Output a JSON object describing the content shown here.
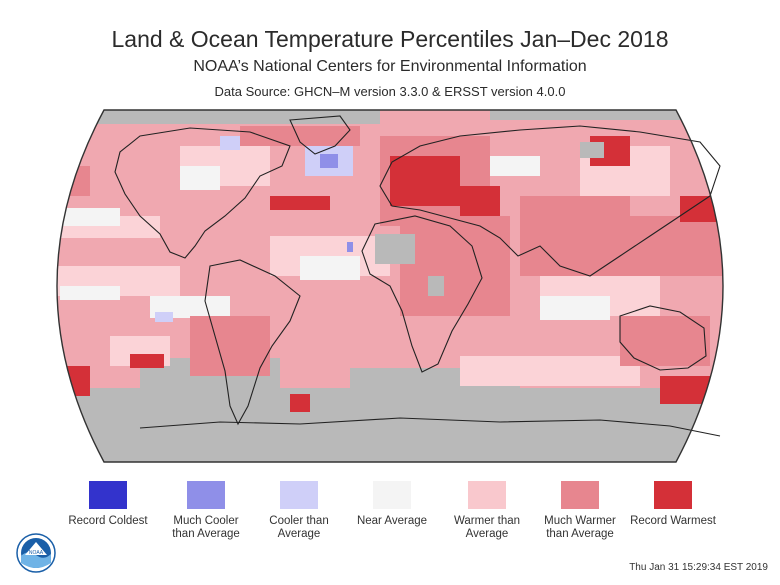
{
  "header": {
    "title": "Land & Ocean Temperature Percentiles Jan–Dec 2018",
    "subtitle": "NOAA’s National Centers for Environmental Information",
    "source": "Data Source: GHCN–M version 3.3.0 & ERSST version 4.0.0"
  },
  "map": {
    "projection": "Robinson",
    "missing_color": "#b9b9b9"
  },
  "legend": [
    {
      "label": "Record Coldest",
      "color": "#3333cc"
    },
    {
      "label": "Much Cooler than Average",
      "color": "#8f8fe8"
    },
    {
      "label": "Cooler than Average",
      "color": "#cfcff8"
    },
    {
      "label": "Near Average",
      "color": "#f4f4f4"
    },
    {
      "label": "Warmer than Average",
      "color": "#f9c8cd"
    },
    {
      "label": "Much Warmer than Average",
      "color": "#e7868f"
    },
    {
      "label": "Record Warmest",
      "color": "#d43038"
    }
  ],
  "footer": {
    "logo_text": "NOAA",
    "timestamp": "Thu Jan 31 15:29:34 EST 2019"
  }
}
